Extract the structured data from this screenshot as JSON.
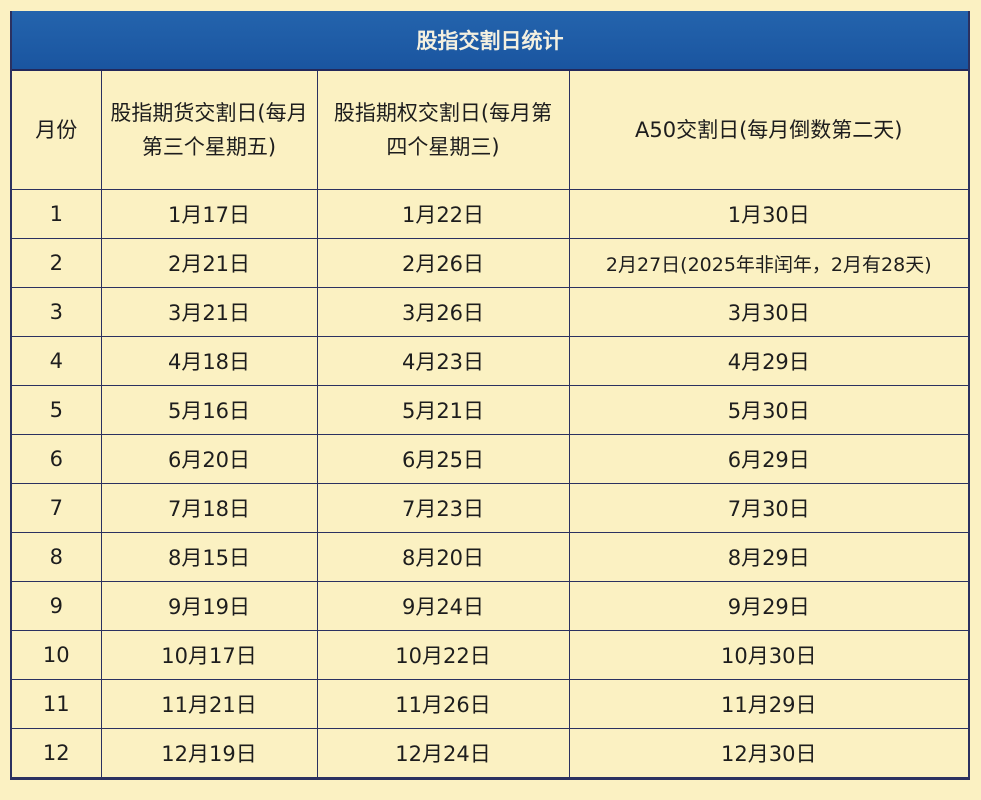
{
  "title": "股指交割日统计",
  "headers": [
    "月份",
    "股指期货交割日(每月第三个星期五)",
    "股指期权交割日(每月第四个星期三)",
    "A50交割日(每月倒数第二天)"
  ],
  "rows": [
    [
      "1",
      "1月17日",
      "1月22日",
      "1月30日"
    ],
    [
      "2",
      "2月21日",
      "2月26日",
      "2月27日(2025年非闰年，2月有28天)"
    ],
    [
      "3",
      "3月21日",
      "3月26日",
      "3月30日"
    ],
    [
      "4",
      "4月18日",
      "4月23日",
      "4月29日"
    ],
    [
      "5",
      "5月16日",
      "5月21日",
      "5月30日"
    ],
    [
      "6",
      "6月20日",
      "6月25日",
      "6月29日"
    ],
    [
      "7",
      "7月18日",
      "7月23日",
      "7月30日"
    ],
    [
      "8",
      "8月15日",
      "8月20日",
      "8月29日"
    ],
    [
      "9",
      "9月19日",
      "9月24日",
      "9月29日"
    ],
    [
      "10",
      "10月17日",
      "10月22日",
      "10月30日"
    ],
    [
      "11",
      "11月21日",
      "11月26日",
      "11月29日"
    ],
    [
      "12",
      "12月19日",
      "12月24日",
      "12月30日"
    ]
  ]
}
